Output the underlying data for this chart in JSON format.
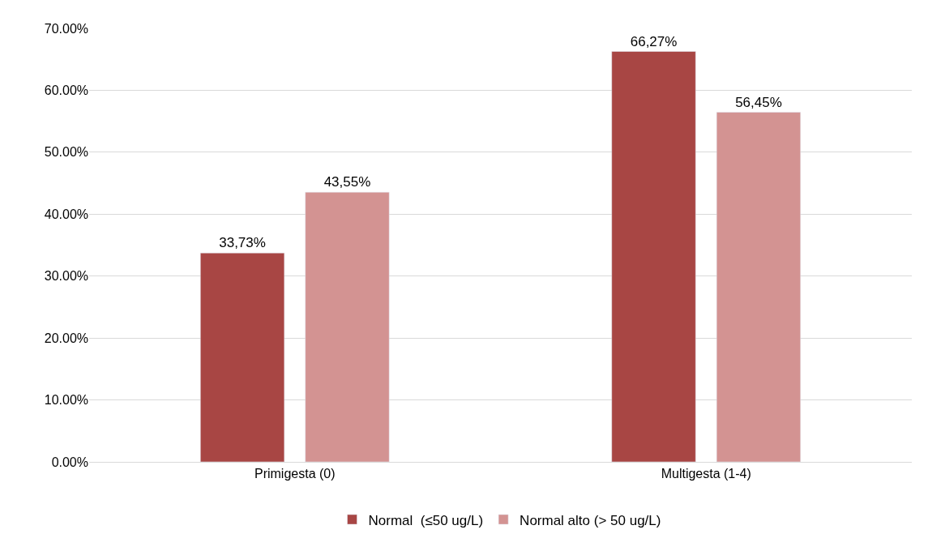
{
  "chart_data": {
    "type": "bar",
    "categories": [
      "Primigesta (0)",
      "Multigesta (1-4)"
    ],
    "series": [
      {
        "name": "Normal  (≤50 ug/L)",
        "color": "#a84644",
        "values": [
          33.73,
          66.27
        ],
        "value_labels": [
          "33,73%",
          "66,27%"
        ]
      },
      {
        "name": "Normal alto (> 50 ug/L)",
        "color": "#d39392",
        "values": [
          43.55,
          56.45
        ],
        "value_labels": [
          "43,55%",
          "56,45%"
        ]
      }
    ],
    "ylim": [
      0,
      70
    ],
    "yticks": [
      {
        "value": 0,
        "label": "0.00%"
      },
      {
        "value": 10,
        "label": "10.00%"
      },
      {
        "value": 20,
        "label": "20.00%"
      },
      {
        "value": 30,
        "label": "30.00%"
      },
      {
        "value": 40,
        "label": "40.00%"
      },
      {
        "value": 50,
        "label": "50.00%"
      },
      {
        "value": 60,
        "label": "60.00%"
      },
      {
        "value": 70,
        "label": "70.00%"
      }
    ],
    "grid": "y",
    "legend": "bottom"
  }
}
